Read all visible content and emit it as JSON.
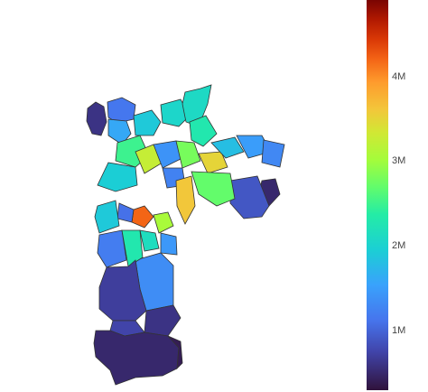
{
  "colorbar": {
    "ticks": [
      {
        "label": "1M",
        "value": 1000000
      },
      {
        "label": "2M",
        "value": 2000000
      },
      {
        "label": "3M",
        "value": 3000000
      },
      {
        "label": "4M",
        "value": 4000000
      }
    ],
    "range": [
      300000,
      4900000
    ],
    "colorscale": "Turbo"
  },
  "map": {
    "region_outline_color": "#333333",
    "regions": [
      {
        "id": "nw-far",
        "value": 600000
      },
      {
        "id": "nw-2",
        "value": 1150000
      },
      {
        "id": "n-1",
        "value": 1600000
      },
      {
        "id": "n-2",
        "value": 1900000
      },
      {
        "id": "n-3",
        "value": 2050000
      },
      {
        "id": "n-peak",
        "value": 2100000
      },
      {
        "id": "n-5",
        "value": 2300000
      },
      {
        "id": "c-1",
        "value": 2500000
      },
      {
        "id": "c-2",
        "value": 3250000
      },
      {
        "id": "c-3",
        "value": 1400000
      },
      {
        "id": "c-4",
        "value": 2800000
      },
      {
        "id": "c-5",
        "value": 1250000
      },
      {
        "id": "c-6",
        "value": 3500000
      },
      {
        "id": "c-7",
        "value": 1950000
      },
      {
        "id": "e-1",
        "value": 1800000
      },
      {
        "id": "e-2",
        "value": 1500000
      },
      {
        "id": "e-3",
        "value": 1300000
      },
      {
        "id": "e-far",
        "value": 500000
      },
      {
        "id": "e-4",
        "value": 900000
      },
      {
        "id": "se-1",
        "value": 3600000
      },
      {
        "id": "se-2",
        "value": 2700000
      },
      {
        "id": "s-1",
        "value": 4200000
      },
      {
        "id": "s-2",
        "value": 3050000
      },
      {
        "id": "s-3",
        "value": 2150000
      },
      {
        "id": "s-4",
        "value": 1200000
      },
      {
        "id": "s-5",
        "value": 1100000
      },
      {
        "id": "s-6",
        "value": 1350000
      },
      {
        "id": "s-7",
        "value": 1450000
      },
      {
        "id": "sw-1",
        "value": 1900000
      },
      {
        "id": "sw-2",
        "value": 2300000
      },
      {
        "id": "far-s-1",
        "value": 700000
      },
      {
        "id": "far-s-2",
        "value": 600000
      },
      {
        "id": "far-s-3",
        "value": 750000
      },
      {
        "id": "far-s-4",
        "value": 500000
      },
      {
        "id": "far-s-5",
        "value": 400000
      }
    ]
  }
}
